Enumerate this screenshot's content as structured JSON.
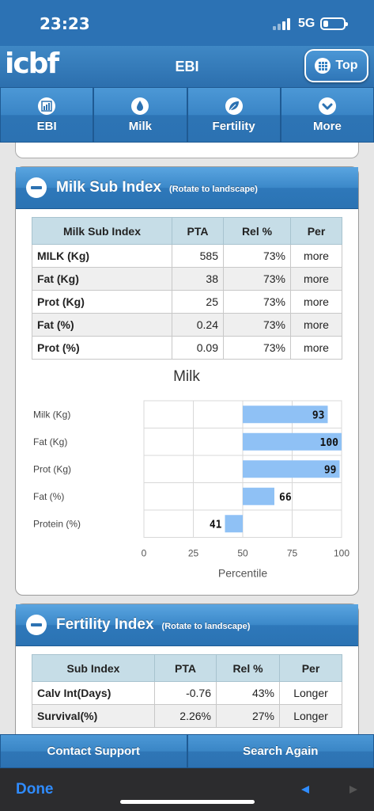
{
  "status": {
    "time": "23:23",
    "network": "5G"
  },
  "header": {
    "logo": "icbf",
    "title": "EBI",
    "top_label": "Top"
  },
  "nav": [
    {
      "label": "EBI",
      "icon": "bar-chart-icon"
    },
    {
      "label": "Milk",
      "icon": "drop-icon"
    },
    {
      "label": "Fertility",
      "icon": "leaf-icon"
    },
    {
      "label": "More",
      "icon": "chevron-down-icon"
    }
  ],
  "milk": {
    "title": "Milk Sub Index",
    "hint": "(Rotate to landscape)",
    "headers": [
      "Milk Sub Index",
      "PTA",
      "Rel %",
      "Per"
    ],
    "rows": [
      [
        "MILK (Kg)",
        "585",
        "73%",
        "more"
      ],
      [
        "Fat (Kg)",
        "38",
        "73%",
        "more"
      ],
      [
        "Prot (Kg)",
        "25",
        "73%",
        "more"
      ],
      [
        "Fat (%)",
        "0.24",
        "73%",
        "more"
      ],
      [
        "Prot (%)",
        "0.09",
        "73%",
        "more"
      ]
    ]
  },
  "chart_data": {
    "type": "bar",
    "orientation": "horizontal",
    "title": "Milk",
    "xlabel": "Percentile",
    "categories": [
      "Milk (Kg)",
      "Fat (Kg)",
      "Prot (Kg)",
      "Fat (%)",
      "Protein (%)"
    ],
    "values": [
      93,
      100,
      99,
      66,
      41
    ],
    "xticks": [
      "0",
      "25",
      "50",
      "75",
      "100"
    ],
    "xlim": [
      0,
      100
    ],
    "baseline": 50,
    "grid": true,
    "bar_color": "#8fc1f5"
  },
  "fertility": {
    "title": "Fertility Index",
    "hint": "(Rotate to landscape)",
    "headers": [
      "Sub Index",
      "PTA",
      "Rel %",
      "Per"
    ],
    "rows": [
      [
        "Calv Int(Days)",
        "-0.76",
        "43%",
        "Longer"
      ],
      [
        "Survival(%)",
        "2.26%",
        "27%",
        "Longer"
      ]
    ]
  },
  "bottom": {
    "contact": "Contact Support",
    "search": "Search Again"
  },
  "browser": {
    "done": "Done"
  }
}
